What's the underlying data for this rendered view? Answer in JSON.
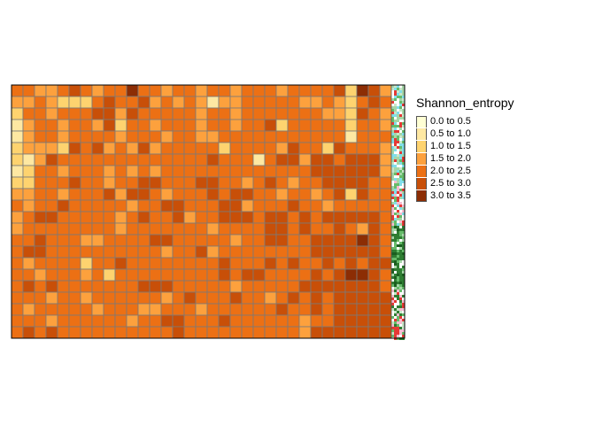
{
  "chart_data": {
    "type": "heatmap",
    "title": "",
    "legend": {
      "title": "Shannon_entropy",
      "placement": "right",
      "classes": [
        {
          "label": "0.0 to 0.5",
          "color": "#FFFFD4"
        },
        {
          "label": "0.5 to 1.0",
          "color": "#FEE8A2"
        },
        {
          "label": "1.0 to 1.5",
          "color": "#FED36F"
        },
        {
          "label": "1.5 to 2.0",
          "color": "#FDA13D"
        },
        {
          "label": "2.0 to 2.5",
          "color": "#EC7014"
        },
        {
          "label": "2.5 to 3.0",
          "color": "#C84F08"
        },
        {
          "label": "3.0 to 3.5",
          "color": "#8C2D04"
        }
      ]
    },
    "grid": {
      "cols": 33,
      "rows": 22
    },
    "class_index": [
      "443345434464434434434443444452653",
      "334322245445343431334444433432454",
      "244344455354444434434444444332543",
      "134434435244344434434452444442443",
      "134434444344434433444444444441444",
      "233325453435344444244443544254443",
      "213544444444444445444145535545553",
      "124434443434344444444444445555553",
      "224445443445544455443454344555544",
      "334434445355434445455443443452544",
      "434454444434455444553444544344444",
      "345544444345445344555455454555554",
      "344444444344444443444455454454354",
      "445444334444554444434455445555654",
      "455444444444434453444444445555554",
      "434444244544444444544454544545455",
      "443444342444444444545544445456654",
      "454544444445554444434444455555554",
      "444344344444434544454434545455555",
      "434444434443344434444445445455555",
      "444344444434455444544444434455555",
      "454544444444445444444444435555555"
    ],
    "side_strip": "land-cover raster (partial)"
  }
}
